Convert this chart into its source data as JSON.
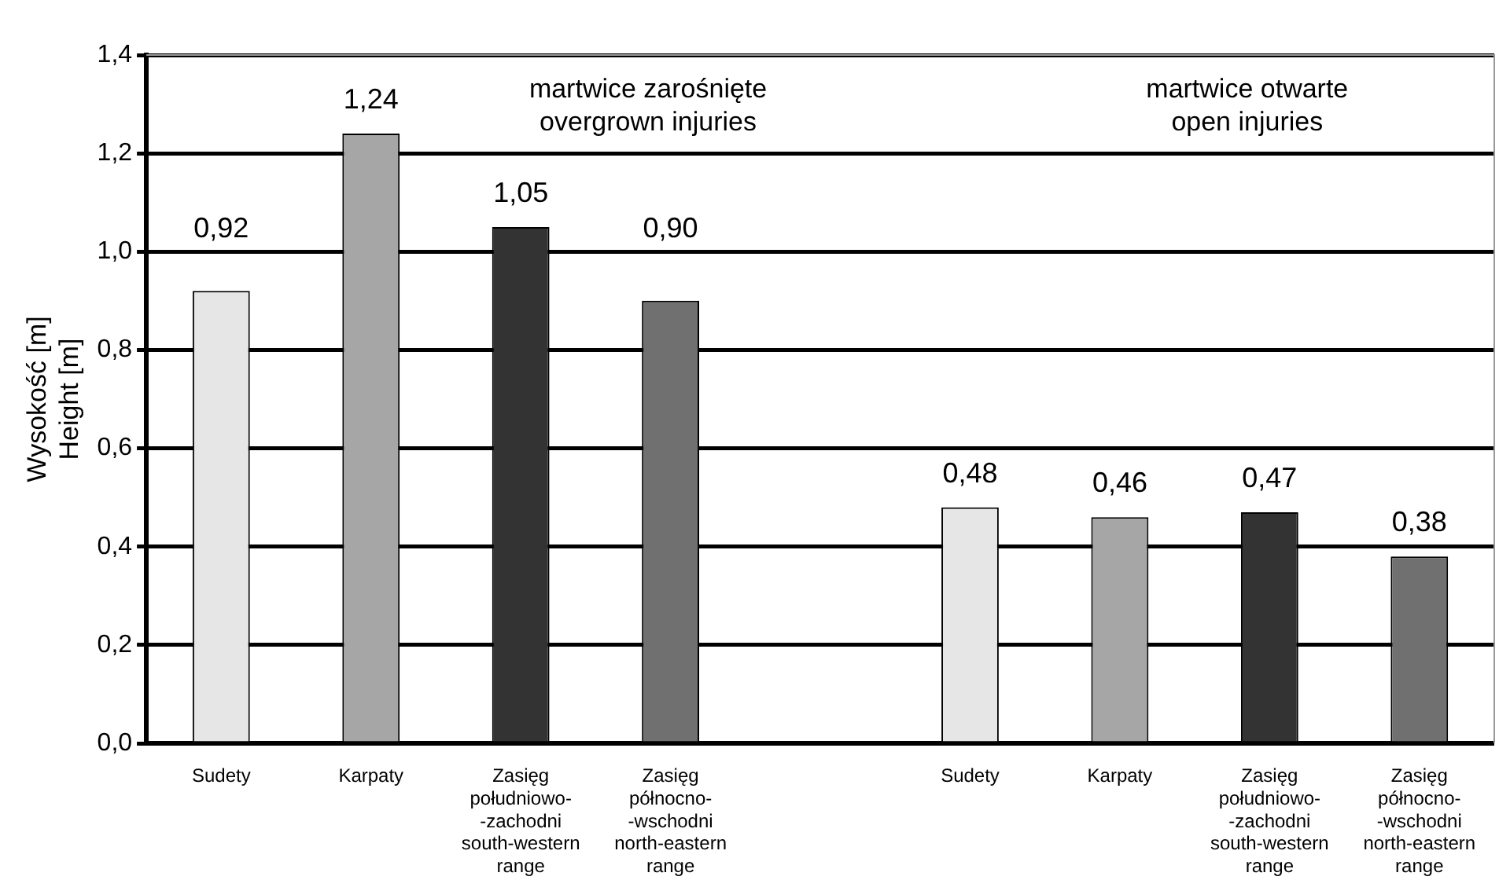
{
  "chart_data": {
    "type": "bar",
    "ylabel": "Wysokość [m]\nHeight [m]",
    "categories": [
      "Sudety",
      "Karpaty",
      "Zasięg\npołudniowo-\n-zachodni\nsouth-western\nrange",
      "Zasięg\npółnocno-\n-wschodni\nnorth-eastern\nrange",
      null,
      "Sudety",
      "Karpaty",
      "Zasięg\npołudniowo-\n-zachodni\nsouth-western\nrange",
      "Zasięg\npółnocno-\n-wschodni\nnorth-eastern\nrange"
    ],
    "values": [
      0.92,
      1.24,
      1.05,
      0.9,
      null,
      0.48,
      0.46,
      0.47,
      0.38
    ],
    "colors": [
      "#e6e6e6",
      "#a6a6a6",
      "#333333",
      "#707070",
      "#ffffff",
      "#e6e6e6",
      "#a6a6a6",
      "#333333",
      "#707070"
    ],
    "value_labels": [
      "0,92",
      "1,24",
      "1,05",
      "0,90",
      null,
      "0,48",
      "0,46",
      "0,47",
      "0,38"
    ],
    "ylim": [
      0,
      1.4
    ],
    "yticks": [
      {
        "value": 0,
        "label": "0,0"
      },
      {
        "value": 0.2,
        "label": "0,2"
      },
      {
        "value": 0.4,
        "label": "0,4"
      },
      {
        "value": 0.6,
        "label": "0,6"
      },
      {
        "value": 0.8,
        "label": "0,8"
      },
      {
        "value": 1,
        "label": "1,0"
      },
      {
        "value": 1.2,
        "label": "1,2"
      },
      {
        "value": 1.4,
        "label": "1,4"
      }
    ],
    "grid": "y",
    "legend": false,
    "annotations": [
      "martwice zarośnięte\novergrown injuries",
      "martwice otwarte\nopen injuries"
    ]
  }
}
